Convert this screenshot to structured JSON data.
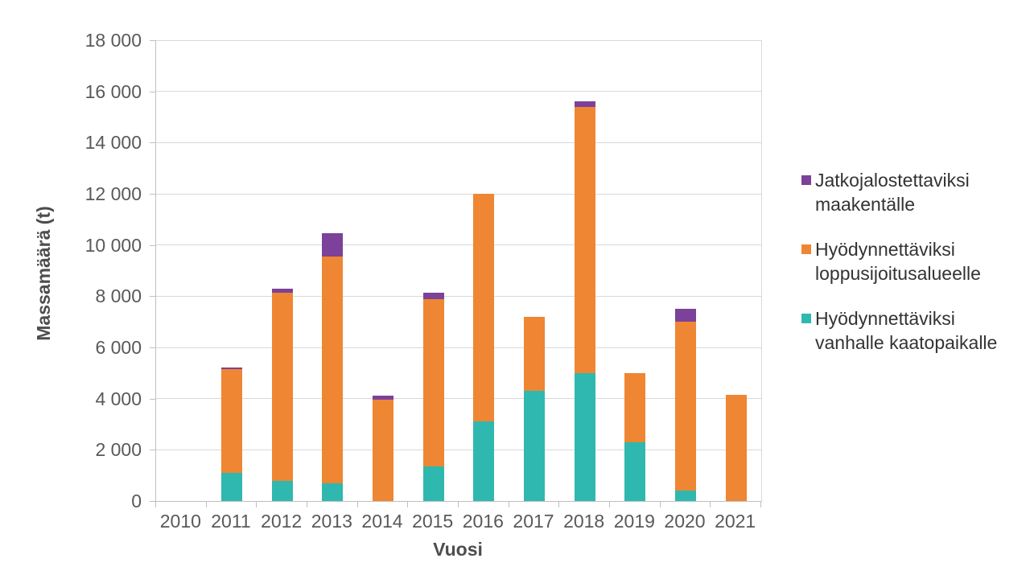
{
  "chart_data": {
    "type": "bar",
    "stacked": true,
    "title": "",
    "xlabel": "Vuosi",
    "ylabel": "Massamäärä (t)",
    "categories": [
      "2010",
      "2011",
      "2012",
      "2013",
      "2014",
      "2015",
      "2016",
      "2017",
      "2018",
      "2019",
      "2020",
      "2021"
    ],
    "series": [
      {
        "name": "Hyödynnettäviksi vanhalle kaatopaikalle",
        "color": "#2FB8AF",
        "values": [
          0,
          1100,
          800,
          700,
          0,
          1350,
          3100,
          4300,
          5000,
          2300,
          400,
          0
        ]
      },
      {
        "name": "Hyödynnettäviksi loppusijoitusalueelle",
        "color": "#EF8633",
        "values": [
          0,
          4050,
          7350,
          8850,
          3950,
          6550,
          8900,
          2900,
          10400,
          2700,
          6600,
          4150
        ]
      },
      {
        "name": "Jatkojalostettaviksi maakentälle",
        "color": "#7C4199",
        "values": [
          0,
          80,
          150,
          900,
          150,
          250,
          0,
          0,
          200,
          0,
          500,
          0
        ]
      }
    ],
    "totals": [
      0,
      5230,
      8300,
      10450,
      4100,
      8150,
      12000,
      7200,
      15600,
      5000,
      7500,
      4150
    ],
    "ylim": [
      0,
      18000
    ],
    "ytick_step": 2000,
    "ytick_labels": [
      "0",
      "2 000",
      "4 000",
      "6 000",
      "8 000",
      "10 000",
      "12 000",
      "14 000",
      "16 000",
      "18 000"
    ],
    "grid": true,
    "legend_position": "right"
  },
  "legend": {
    "items": [
      {
        "label": "Jatkojalostettaviksi maakentälle",
        "color": "#7C4199"
      },
      {
        "label": "Hyödynnettäviksi loppusijoitusalueelle",
        "color": "#EF8633"
      },
      {
        "label": "Hyödynnettäviksi vanhalle kaatopaikalle",
        "color": "#2FB8AF"
      }
    ]
  },
  "colors": {
    "gridline": "#D9D9D9",
    "axis_line": "#BFBFBF",
    "tick_text": "#595959",
    "title_text": "#4D4D4D",
    "legend_text": "#333333",
    "background": "#FFFFFF"
  }
}
